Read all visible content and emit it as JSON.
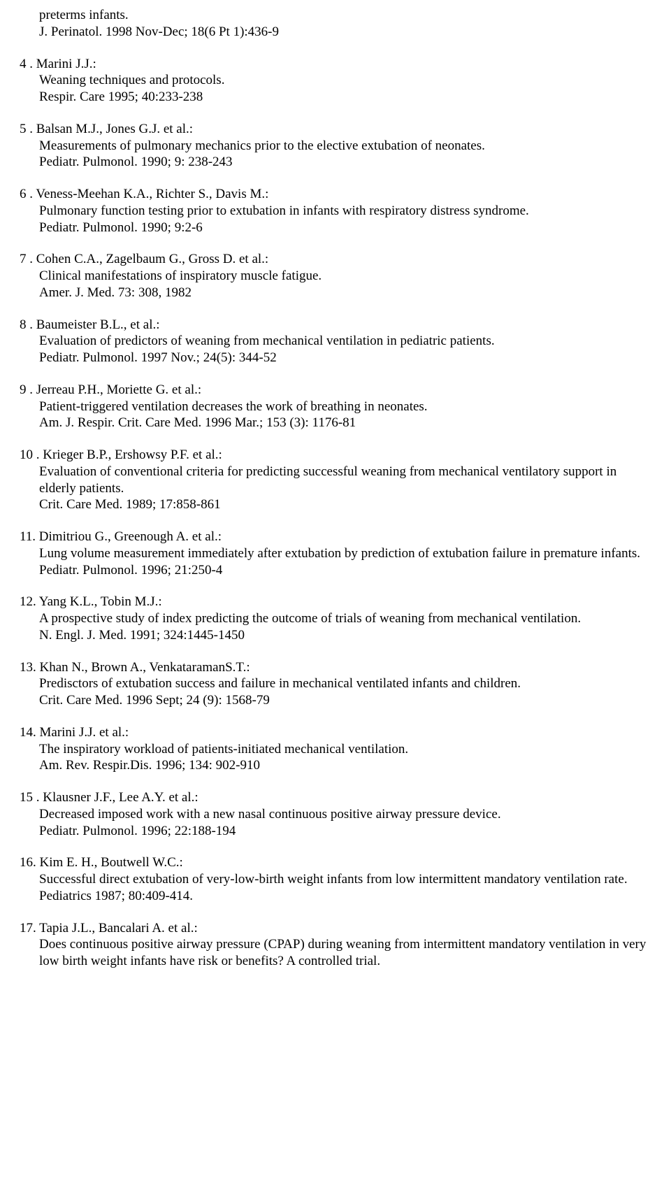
{
  "frag": {
    "line1": "preterms infants.",
    "line2": "J. Perinatol. 1998 Nov-Dec; 18(6 Pt 1):436-9"
  },
  "refs": [
    {
      "num": "4 .",
      "head": "Marini J.J.:",
      "l1": "Weaning techniques and protocols.",
      "l2": "Respir. Care 1995; 40:233-238"
    },
    {
      "num": "5 .",
      "head": "Balsan M.J., Jones G.J. et al.:",
      "l1": "Measurements of pulmonary mechanics prior to the elective extubation of neonates.",
      "l2": "Pediatr. Pulmonol. 1990; 9: 238-243"
    },
    {
      "num": "6 .",
      "head": "Veness-Meehan K.A., Richter S., Davis M.:",
      "l1": "Pulmonary function testing prior to extubation in infants with respiratory distress syndrome.",
      "l2": "Pediatr. Pulmonol. 1990; 9:2-6"
    },
    {
      "num": "7 .",
      "head": "Cohen C.A., Zagelbaum G., Gross D. et al.:",
      "l1": "Clinical manifestations of inspiratory muscle fatigue.",
      "l2": "Amer. J. Med. 73: 308, 1982"
    },
    {
      "num": "8 .",
      "head": "Baumeister B.L., et al.:",
      "l1": "Evaluation of predictors of weaning from mechanical ventilation in pediatric patients.",
      "l2": "Pediatr. Pulmonol. 1997 Nov.; 24(5): 344-52"
    },
    {
      "num": "9 .",
      "head": "Jerreau P.H., Moriette G. et al.:",
      "l1": "Patient-triggered ventilation decreases the work of breathing in neonates.",
      "l2": "Am. J. Respir. Crit. Care Med. 1996 Mar.; 153 (3): 1176-81"
    },
    {
      "num": "10 .",
      "head": "Krieger B.P., Ershowsy P.F. et al.:",
      "l1": "Evaluation of conventional criteria for predicting successful weaning from mechanical ventilatory support in elderly patients.",
      "l2": "Crit. Care Med. 1989; 17:858-861"
    },
    {
      "num": "11.",
      "head": "Dimitriou G., Greenough A. et al.:",
      "l1": "Lung volume measurement immediately after extubation by prediction of extubation failure in premature infants.",
      "l2": "Pediatr. Pulmonol. 1996; 21:250-4"
    },
    {
      "num": "12.",
      "head": "Yang K.L., Tobin M.J.:",
      "l1": "A prospective study of index predicting the outcome of trials of weaning from mechanical ventilation.",
      "l2": "N. Engl. J. Med. 1991; 324:1445-1450"
    },
    {
      "num": "13.",
      "head": "Khan N., Brown A., VenkataramanS.T.:",
      "l1": "Predisctors of extubation success and failure in mechanical ventilated infants and children.",
      "l2": "Crit. Care Med. 1996 Sept; 24 (9): 1568-79"
    },
    {
      "num": "14.",
      "head": "Marini J.J. et al.:",
      "l1": "The inspiratory workload of patients-initiated mechanical ventilation.",
      "l2": "Am. Rev. Respir.Dis. 1996; 134: 902-910"
    },
    {
      "num": "15 .",
      "head": "Klausner J.F., Lee A.Y. et al.:",
      "l1": "Decreased imposed work with a new nasal continuous positive airway pressure device.",
      "l2": "Pediatr. Pulmonol. 1996; 22:188-194"
    },
    {
      "num": "16.",
      "head": " Kim E. H., Boutwell W.C.:",
      "l1": "Successful direct extubation of very-low-birth weight infants from low intermittent mandatory ventilation rate.",
      "l2": "Pediatrics 1987; 80:409-414."
    },
    {
      "num": "17.",
      "head": "Tapia J.L., Bancalari A. et al.:",
      "l1": "Does continuous positive airway pressure (CPAP) during weaning from intermittent mandatory ventilation in very low birth weight infants have risk or benefits? A controlled trial.",
      "l2": ""
    }
  ]
}
